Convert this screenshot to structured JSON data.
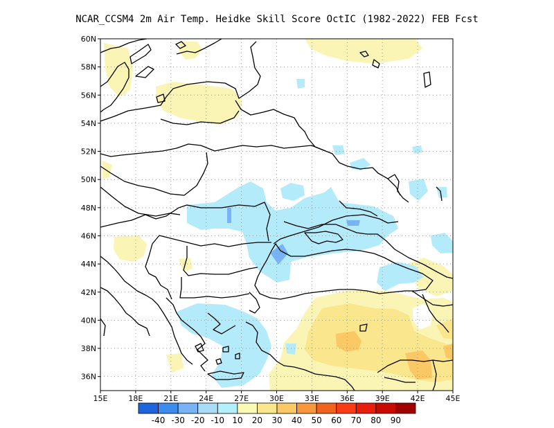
{
  "title": "NCAR_CCSM4   2m Air Temp. Heidke Skill Score OctIC (1982-2022) FEB Fcst",
  "map": {
    "lon_labels": [
      "15E",
      "18E",
      "21E",
      "24E",
      "27E",
      "30E",
      "33E",
      "36E",
      "39E",
      "42E",
      "45E"
    ],
    "lat_labels": [
      "60N",
      "58N",
      "56N",
      "54N",
      "52N",
      "50N",
      "48N",
      "46N",
      "44N",
      "42N",
      "40N",
      "38N",
      "36N"
    ],
    "lon_range": [
      15,
      45
    ],
    "lat_range": [
      35,
      60
    ],
    "grid": true
  },
  "colorbar": {
    "labels": [
      "-40",
      "-30",
      "-20",
      "-10",
      "10",
      "20",
      "30",
      "40",
      "50",
      "60",
      "70",
      "80",
      "90"
    ],
    "colors": [
      "#1e64dc",
      "#3c8cf0",
      "#78b4f5",
      "#aadcf5",
      "#b4f0fa",
      "#fafab4",
      "#fae68c",
      "#fac864",
      "#fa963c",
      "#f0641e",
      "#fa3c14",
      "#e61e0a",
      "#c80a00",
      "#a00000"
    ]
  },
  "colors": {
    "pos_10_20": "#faf5b4",
    "pos_20_30": "#fae68c",
    "pos_30_40": "#fac864",
    "neg_10_20": "#b4ebfa",
    "neg_20_30": "#78b4f5"
  }
}
